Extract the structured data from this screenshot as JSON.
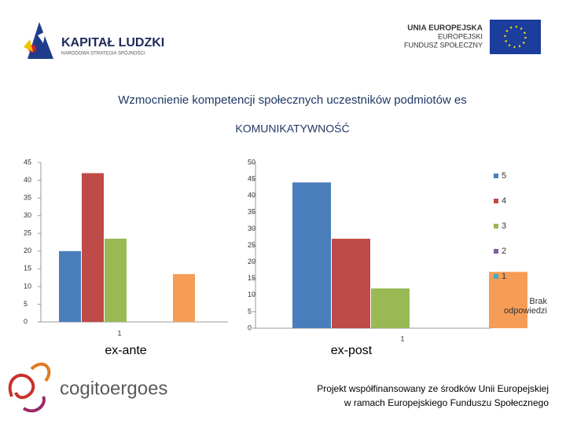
{
  "header": {
    "logo_left_title": "KAPITAŁ LUDZKI",
    "logo_left_subtitle": "NARODOWA STRATEGIA SPÓJNOŚCI",
    "logo_right_line1": "UNIA EUROPEJSKA",
    "logo_right_line2": "EUROPEJSKI",
    "logo_right_line3": "FUNDUSZ SPOŁECZNY",
    "title": "Wzmocnienie kompetencji społecznych uczestników podmiotów es",
    "subtitle": "KOMUNIKATYWNOŚĆ"
  },
  "chart_data": [
    {
      "type": "bar",
      "xlabel": "ex-ante",
      "categories": [
        "1"
      ],
      "ylim": [
        0,
        45
      ],
      "yticks": [
        0,
        5,
        10,
        15,
        20,
        25,
        30,
        35,
        40,
        45
      ],
      "series": [
        {
          "color": "#4a7ebb",
          "values": [
            20
          ]
        },
        {
          "color": "#be4b48",
          "values": [
            42
          ]
        },
        {
          "color": "#98b954",
          "values": [
            23.5
          ]
        },
        {
          "color": "#7d60a0",
          "values": [
            0
          ]
        },
        {
          "color": "#46aac5",
          "values": [
            0
          ]
        },
        {
          "color": "#f59d56",
          "values": [
            13.5
          ]
        }
      ]
    },
    {
      "type": "bar",
      "xlabel": "ex-post",
      "categories": [
        "1"
      ],
      "ylim": [
        0,
        50
      ],
      "yticks": [
        0,
        5,
        10,
        15,
        20,
        25,
        30,
        35,
        40,
        45,
        50
      ],
      "legend": "right",
      "series": [
        {
          "name": "5",
          "color": "#4a7ebb",
          "values": [
            44
          ]
        },
        {
          "name": "4",
          "color": "#be4b48",
          "values": [
            27
          ]
        },
        {
          "name": "3",
          "color": "#98b954",
          "values": [
            12
          ]
        },
        {
          "name": "2",
          "color": "#7d60a0",
          "values": [
            0
          ]
        },
        {
          "name": "1",
          "color": "#46aac5",
          "values": [
            0
          ]
        },
        {
          "name": "Brak odpowiedzi",
          "color": "#f59d56",
          "values": [
            17
          ]
        }
      ]
    }
  ],
  "footer": {
    "logo": "cogitoergoes",
    "line1": "Projekt  współfinansowany ze środków Unii Europejskiej",
    "line2": "w ramach Europejskiego Funduszu Społecznego"
  }
}
